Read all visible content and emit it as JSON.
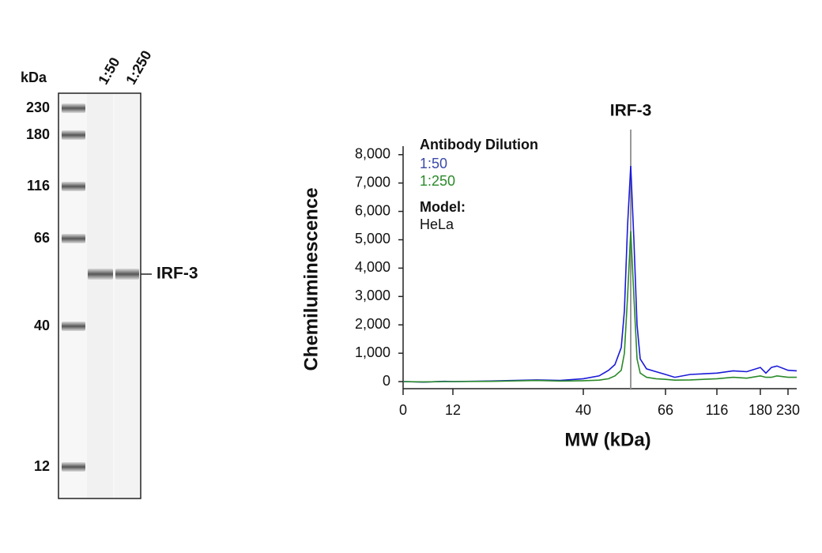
{
  "blot": {
    "kda_label": "kDa",
    "markers": [
      "230",
      "180",
      "116",
      "66",
      "40",
      "12"
    ],
    "lanes": [
      "1:50",
      "1:250"
    ],
    "band_label": "IRF-3"
  },
  "chart_data": {
    "type": "line",
    "annotation": {
      "label": "IRF-3",
      "x": 55
    },
    "legend": {
      "title": "Antibody Dilution",
      "model_title": "Model:",
      "model": "HeLa"
    },
    "xlabel": "MW (kDa)",
    "ylabel": "Chemiluminescence",
    "x": [
      0,
      5,
      10,
      12,
      20,
      30,
      35,
      40,
      45,
      48,
      50,
      52,
      53,
      54,
      55,
      56,
      57,
      58,
      60,
      63,
      66,
      75,
      90,
      116,
      140,
      160,
      180,
      190,
      200,
      210,
      230,
      245
    ],
    "series": [
      {
        "name": "1:50",
        "color": "#1a1ad8",
        "label_color": "#3a4aa8",
        "values": [
          0,
          -20,
          10,
          0,
          20,
          60,
          40,
          100,
          200,
          400,
          600,
          1200,
          2500,
          5500,
          7600,
          5000,
          2000,
          800,
          450,
          350,
          250,
          150,
          250,
          300,
          380,
          350,
          500,
          300,
          500,
          550,
          400,
          380
        ]
      },
      {
        "name": "1:250",
        "color": "#2a8a2a",
        "label_color": "#2a8a2a",
        "values": [
          0,
          -10,
          0,
          0,
          10,
          40,
          20,
          30,
          50,
          100,
          200,
          400,
          1000,
          3000,
          5300,
          3000,
          800,
          300,
          150,
          100,
          80,
          50,
          60,
          100,
          150,
          120,
          200,
          150,
          150,
          200,
          150,
          150
        ]
      }
    ],
    "xlim": [
      0,
      245
    ],
    "xticks": [
      0,
      12,
      40,
      66,
      116,
      180,
      230
    ],
    "ylim": [
      -250,
      8300
    ],
    "yticks": [
      0,
      {
        "value": 1000,
        "label": "1,000"
      },
      {
        "value": 2000,
        "label": "2,000"
      },
      {
        "value": 3000,
        "label": "3,000"
      },
      {
        "value": 4000,
        "label": "4,000"
      },
      {
        "value": 5000,
        "label": "5,000"
      },
      {
        "value": 6000,
        "label": "6,000"
      },
      {
        "value": 7000,
        "label": "7,000"
      },
      {
        "value": 8000,
        "label": "8,000"
      }
    ]
  }
}
